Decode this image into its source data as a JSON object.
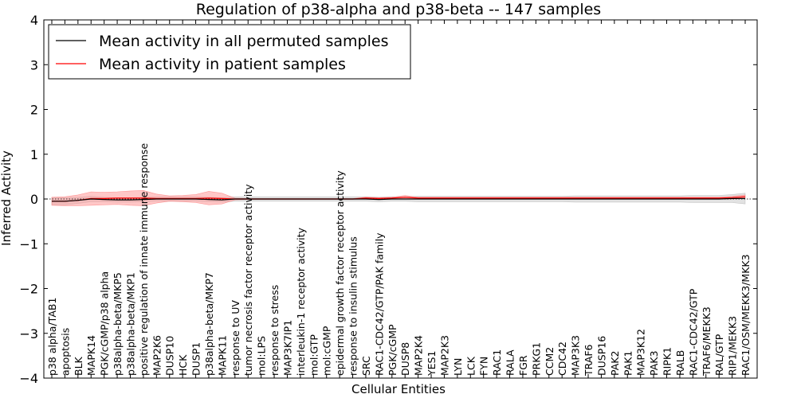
{
  "chart_data": {
    "type": "line",
    "title": "Regulation of p38-alpha and p38-beta -- 147 samples",
    "xlabel": "Cellular Entities",
    "ylabel": "Inferred Activity",
    "ylim": [
      -4,
      4
    ],
    "yticks": [
      -4,
      -3,
      -2,
      -1,
      0,
      1,
      2,
      3,
      4
    ],
    "ytick_labels": [
      "−4",
      "−3",
      "−2",
      "−1",
      "0",
      "1",
      "2",
      "3",
      "4"
    ],
    "legend_position": "upper-left",
    "colors": {
      "permuted": "#000000",
      "patient": "#ff0000",
      "patient_band": "#ff9999",
      "permuted_band": "#bfbfbf"
    },
    "categories": [
      "p38 alpha/TAB1",
      "apoptosis",
      "BLK",
      "MAPK14",
      "PGK/cGMP/p38 alpha",
      "p38alpha-beta/MKP5",
      "p38alpha-beta/MKP1",
      "positive regulation of innate immune response",
      "MAP2K6",
      "DUSP10",
      "HCK",
      "DUSP1",
      "p38alpha-beta/MKP7",
      "MAPK11",
      "response to UV",
      "tumor necrosis factor receptor activity",
      "mol:LPS",
      "response to stress",
      "MAP3K7IP1",
      "interleukin-1 receptor activity",
      "mol:GTP",
      "mol:cGMP",
      "epidermal growth factor receptor activity",
      "response to insulin stimulus",
      "SRC",
      "RAC1-CDC42/GTP/PAK family",
      "PGK/cGMP",
      "DUSP8",
      "MAP2K4",
      "YES1",
      "MAP2K3",
      "LYN",
      "LCK",
      "FYN",
      "RAC1",
      "RALA",
      "FGR",
      "PRKG1",
      "CCM2",
      "CDC42",
      "MAP3K3",
      "TRAF6",
      "DUSP16",
      "PAK2",
      "PAK1",
      "MAP3K12",
      "PAK3",
      "RIPK1",
      "RALB",
      "RAC1-CDC42/GTP",
      "TRAF6/MEKK3",
      "RAL/GTP",
      "RIP1/MEKK3",
      "RAC1/OSM/MEKK3/MKK3"
    ],
    "series": [
      {
        "name": "Mean activity in all permuted samples",
        "values": [
          -0.05,
          -0.05,
          -0.03,
          0.0,
          -0.01,
          -0.02,
          -0.02,
          -0.01,
          0.0,
          0.0,
          0.0,
          0.0,
          -0.01,
          -0.02,
          0.0,
          0.0,
          0.0,
          0.0,
          0.0,
          0.0,
          0.0,
          0.0,
          0.0,
          0.0,
          0.0,
          -0.01,
          0.0,
          0.0,
          0.0,
          0.0,
          0.0,
          0.0,
          0.0,
          0.0,
          0.0,
          0.0,
          0.0,
          0.0,
          0.0,
          0.0,
          0.0,
          0.0,
          0.0,
          0.0,
          0.0,
          0.0,
          0.0,
          0.0,
          0.0,
          0.0,
          0.0,
          0.0,
          0.01,
          0.01
        ],
        "band": [
          0.08,
          0.08,
          0.07,
          0.06,
          0.05,
          0.05,
          0.05,
          0.05,
          0.05,
          0.05,
          0.05,
          0.05,
          0.05,
          0.05,
          0.05,
          0.05,
          0.05,
          0.05,
          0.05,
          0.05,
          0.05,
          0.05,
          0.05,
          0.05,
          0.05,
          0.05,
          0.05,
          0.05,
          0.06,
          0.06,
          0.06,
          0.06,
          0.06,
          0.06,
          0.06,
          0.06,
          0.06,
          0.06,
          0.06,
          0.06,
          0.07,
          0.07,
          0.07,
          0.07,
          0.07,
          0.07,
          0.07,
          0.07,
          0.07,
          0.08,
          0.08,
          0.08,
          0.09,
          0.12
        ]
      },
      {
        "name": "Mean activity in patient samples",
        "values": [
          -0.05,
          -0.05,
          -0.03,
          0.01,
          0.01,
          0.02,
          0.02,
          0.02,
          0.01,
          0.01,
          0.01,
          0.01,
          0.02,
          0.01,
          0.0,
          0.0,
          0.0,
          0.0,
          0.0,
          0.0,
          0.0,
          0.0,
          0.0,
          0.0,
          0.02,
          0.01,
          0.02,
          0.04,
          0.02,
          0.02,
          0.02,
          0.02,
          0.02,
          0.02,
          0.02,
          0.02,
          0.02,
          0.02,
          0.02,
          0.02,
          0.02,
          0.02,
          0.02,
          0.02,
          0.02,
          0.02,
          0.02,
          0.02,
          0.02,
          0.02,
          0.02,
          0.02,
          0.03,
          0.05
        ],
        "band": [
          0.09,
          0.1,
          0.12,
          0.15,
          0.14,
          0.14,
          0.16,
          0.17,
          0.1,
          0.06,
          0.07,
          0.09,
          0.15,
          0.12,
          0.02,
          0.01,
          0.01,
          0.01,
          0.01,
          0.01,
          0.01,
          0.01,
          0.01,
          0.01,
          0.02,
          0.02,
          0.02,
          0.04,
          0.02,
          0.02,
          0.02,
          0.02,
          0.02,
          0.02,
          0.02,
          0.02,
          0.02,
          0.02,
          0.02,
          0.02,
          0.02,
          0.02,
          0.02,
          0.02,
          0.02,
          0.02,
          0.02,
          0.02,
          0.02,
          0.02,
          0.02,
          0.02,
          0.03,
          0.04
        ]
      }
    ]
  }
}
